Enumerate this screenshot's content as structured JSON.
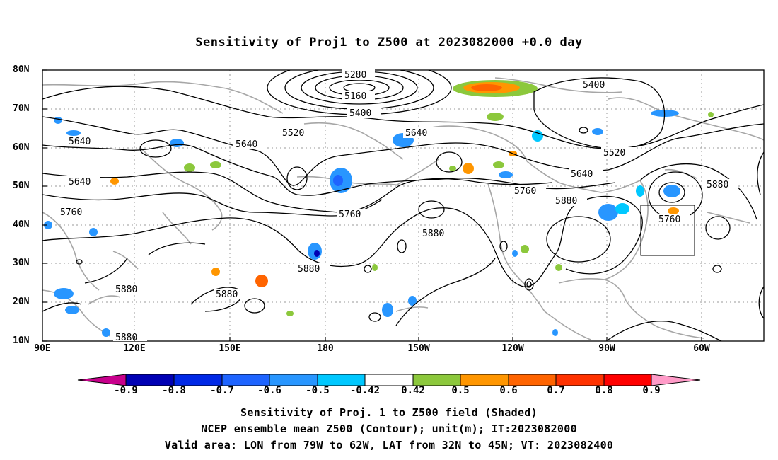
{
  "title": "Sensitivity of Proj1 to Z500 at 2023082000 +0.0 day",
  "map": {
    "lat_labels": [
      "80N",
      "70N",
      "60N",
      "50N",
      "40N",
      "30N",
      "20N",
      "10N"
    ],
    "lon_labels": [
      "90E",
      "120E",
      "150E",
      "180",
      "150W",
      "120W",
      "90W",
      "60W"
    ],
    "contour_labels": [
      "5280",
      "5160",
      "5400",
      "5400",
      "5520",
      "5520",
      "5640",
      "5640",
      "5640",
      "5640",
      "5640",
      "5760",
      "5760",
      "5760",
      "5760",
      "5880",
      "5880",
      "5880",
      "5880",
      "5880",
      "5880",
      "5880"
    ],
    "valid_box": {
      "lon_from": "79W",
      "lon_to": "62W",
      "lat_from": "32N",
      "lat_to": "45N"
    }
  },
  "colorbar": {
    "labels": [
      "-0.9",
      "-0.8",
      "-0.7",
      "-0.6",
      "-0.5",
      "-0.42",
      "0.42",
      "0.5",
      "0.6",
      "0.7",
      "0.8",
      "0.9"
    ],
    "colors": [
      "#c8008c",
      "#0000b4",
      "#0028e6",
      "#1e64ff",
      "#2896ff",
      "#00c8ff",
      "#ffffff",
      "#8cc83c",
      "#ff9600",
      "#ff6400",
      "#ff3200",
      "#ff0000",
      "#ff9bc8"
    ]
  },
  "captions": [
    "Sensitivity of Proj. 1 to Z500 field (Shaded)",
    "NCEP ensemble mean Z500 (Contour); unit(m); IT:2023082000",
    "Valid area: LON from 79W to 62W, LAT from 32N to 45N; VT: 2023082400"
  ]
}
